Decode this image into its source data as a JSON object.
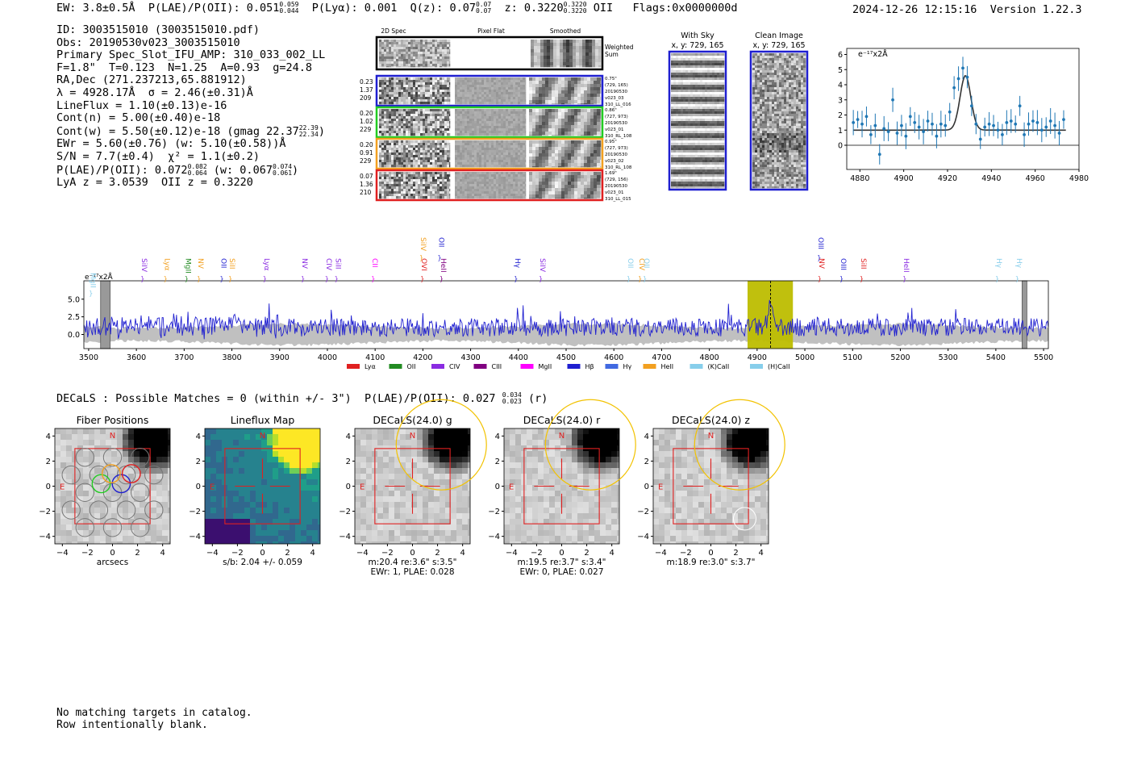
{
  "header": {
    "ew": "EW: 3.8±0.5Å",
    "plae_label": "P(LAE)/P(OII): 0.051",
    "plae_hi": "0.059",
    "plae_lo": "0.044",
    "plya": "P(Lyα): 0.001",
    "q_label": "Q(z): 0.07",
    "q_hi": "0.07",
    "q_lo": "0.07",
    "z_label": "z: 0.3220",
    "z_hi": "0.3220",
    "z_lo": "0.3220",
    "z_line": "OII",
    "flags": "Flags:0x0000000d",
    "timestamp": "2024-12-26 12:15:16",
    "version": "Version 1.22.3"
  },
  "info": {
    "id": "ID: 3003515010 (3003515010.pdf)",
    "obs": "Obs: 20190530v023_3003515010",
    "primary": "Primary Spec_Slot_IFU_AMP: 310_033_002_LL",
    "fparams": "F=1.8\"  T=0.123  N=1.25  A=0.93  g=24.8",
    "radec": "RA,Dec (271.237213,65.881912)",
    "lambda": "λ = 4928.17Å  σ = 2.46(±0.31)Å",
    "lineflux": "LineFlux = 1.10(±0.13)e-16",
    "contn": "Cont(n) = 5.00(±0.40)e-18",
    "contw": "Cont(w) = 5.50(±0.12)e-18 (gmag 22.37",
    "contw_hi": "22.39",
    "contw_lo": "22.34",
    "contw_end": ")",
    "ewr": "EWr = 5.60(±0.76) (w: 5.10(±0.58))Å",
    "sn": "S/N = 7.7(±0.4)  χ² = 1.1(±0.2)",
    "plae": "P(LAE)/P(OII): 0.072",
    "plae_hi": "0.082",
    "plae_lo": "0.064",
    "plae_w": "(w: 0.067",
    "plae_w_hi": "0.074",
    "plae_w_lo": "0.061",
    "plae_w_end": ")",
    "lya": "LyA z = 3.0539  OII z = 0.3220"
  },
  "cutouts": {
    "col_2d": "2D Spec",
    "col_flat": "Pixel Flat",
    "col_smooth": "Smoothed",
    "weighted": "Weighted",
    "sum": "Sum",
    "rows": [
      {
        "color": "#1f1fd0",
        "w1": "0.23",
        "w2": "1.37",
        "w3": "209",
        "r1": "0.75\"",
        "r2": "(729, 165)",
        "r3": "20190530",
        "r4": "v023_03",
        "r5": "310_LL_016"
      },
      {
        "color": "#22cc22",
        "w1": "0.20",
        "w2": "1.02",
        "w3": "229",
        "r1": "0.86\"",
        "r2": "(727, 973)",
        "r3": "20190530",
        "r4": "v023_01",
        "r5": "310_RL_108"
      },
      {
        "color": "#f2a020",
        "w1": "0.20",
        "w2": "0.91",
        "w3": "229",
        "r1": "0.95\"",
        "r2": "(727, 973)",
        "r3": "20190530",
        "r4": "v023_02",
        "r5": "310_RL_108"
      },
      {
        "color": "#e02020",
        "w1": "0.07",
        "w2": "1.36",
        "w3": "210",
        "r1": "1.69\"",
        "r2": "(729, 156)",
        "r3": "20190530",
        "r4": "v023_01",
        "r5": "310_LL_015"
      }
    ],
    "with_sky_title": "With Sky",
    "with_sky_coord": "x, y: 729, 165",
    "clean_title": "Clean Image",
    "clean_coord": "x, y: 729, 165"
  },
  "zoom_chart": {
    "type": "scatter",
    "ylabel": "e⁻¹⁷x2Å",
    "xlim": [
      4874,
      4980
    ],
    "ylim": [
      -1.6,
      6.4
    ],
    "xticks": [
      4880,
      4900,
      4920,
      4940,
      4960,
      4980
    ],
    "yticks": [
      0,
      1,
      2,
      3,
      4,
      5,
      6
    ],
    "points": [
      [
        4877,
        1.5
      ],
      [
        4879,
        1.7
      ],
      [
        4881,
        1.4
      ],
      [
        4883,
        1.9
      ],
      [
        4885,
        0.7
      ],
      [
        4887,
        1.3
      ],
      [
        4889,
        -0.6
      ],
      [
        4891,
        1.1
      ],
      [
        4893,
        0.9
      ],
      [
        4895,
        3.0
      ],
      [
        4897,
        0.8
      ],
      [
        4899,
        1.3
      ],
      [
        4901,
        0.6
      ],
      [
        4903,
        1.9
      ],
      [
        4905,
        1.5
      ],
      [
        4907,
        1.2
      ],
      [
        4909,
        0.9
      ],
      [
        4911,
        1.6
      ],
      [
        4913,
        1.4
      ],
      [
        4915,
        0.6
      ],
      [
        4917,
        1.4
      ],
      [
        4919,
        1.3
      ],
      [
        4921,
        2.2
      ],
      [
        4923,
        3.8
      ],
      [
        4925,
        4.4
      ],
      [
        4927,
        5.1
      ],
      [
        4929,
        4.5
      ],
      [
        4931,
        2.6
      ],
      [
        4933,
        1.4
      ],
      [
        4935,
        0.4
      ],
      [
        4937,
        1.2
      ],
      [
        4939,
        1.4
      ],
      [
        4941,
        1.3
      ],
      [
        4943,
        1.0
      ],
      [
        4945,
        0.7
      ],
      [
        4947,
        1.5
      ],
      [
        4949,
        1.6
      ],
      [
        4951,
        1.4
      ],
      [
        4953,
        2.6
      ],
      [
        4955,
        0.7
      ],
      [
        4957,
        1.4
      ],
      [
        4959,
        1.6
      ],
      [
        4961,
        1.5
      ],
      [
        4963,
        1.0
      ],
      [
        4965,
        1.2
      ],
      [
        4967,
        1.6
      ],
      [
        4969,
        1.3
      ],
      [
        4971,
        0.8
      ],
      [
        4973,
        1.7
      ]
    ],
    "fit": {
      "continuum": 1.0,
      "center": 4928.17,
      "sigma": 2.46,
      "peak": 3.6
    }
  },
  "spectrum": {
    "type": "line",
    "ylabel": "e⁻¹⁷x2Å",
    "xlim": [
      3490,
      5510
    ],
    "ylim": [
      -2.0,
      7.6
    ],
    "xticks": [
      3500,
      3600,
      3700,
      3800,
      3900,
      4000,
      4100,
      4200,
      4300,
      4400,
      4500,
      4600,
      4700,
      4800,
      4900,
      5000,
      5100,
      5200,
      5300,
      5400,
      5500
    ],
    "yticks": [
      0.0,
      2.5,
      5.0
    ],
    "ytick_labels": [
      "0.0",
      "2.5",
      "5.0"
    ],
    "highlight_band": [
      4880,
      4975
    ],
    "emission_line": 4928.17,
    "masked_regions": [
      [
        3525,
        3545
      ],
      [
        5455,
        5465
      ]
    ],
    "line_markers": [
      {
        "label": "MgII",
        "x": 3504,
        "color": "#87ceeb",
        "row": 0
      },
      {
        "label": "SiIV",
        "x": 3612,
        "color": "#8a2be2",
        "row": 1
      },
      {
        "label": "Lyα",
        "x": 3660,
        "color": "#f2a020",
        "row": 1
      },
      {
        "label": "MgII",
        "x": 3704,
        "color": "#228b22",
        "row": 1
      },
      {
        "label": "NV",
        "x": 3730,
        "color": "#f2a020",
        "row": 1
      },
      {
        "label": "OII",
        "x": 3778,
        "color": "#1f1fd0",
        "row": 1
      },
      {
        "label": "SiII",
        "x": 3796,
        "color": "#f2a020",
        "row": 1
      },
      {
        "label": "Lyα",
        "x": 3868,
        "color": "#8a2be2",
        "row": 1
      },
      {
        "label": "NV",
        "x": 3948,
        "color": "#8a2be2",
        "row": 1
      },
      {
        "label": "CIV",
        "x": 3998,
        "color": "#8a2be2",
        "row": 1
      },
      {
        "label": "SiII",
        "x": 4018,
        "color": "#8a2be2",
        "row": 1
      },
      {
        "label": "CII",
        "x": 4095,
        "color": "#ff00ff",
        "row": 1
      },
      {
        "label": "SiIV",
        "x": 4196,
        "color": "#f2a020",
        "row": 2
      },
      {
        "label": "OII",
        "x": 4234,
        "color": "#1f1fd0",
        "row": 2
      },
      {
        "label": "OVI",
        "x": 4198,
        "color": "#e02020",
        "row": 1
      },
      {
        "label": "HeII",
        "x": 4238,
        "color": "#800080",
        "row": 1
      },
      {
        "label": "Hγ",
        "x": 4394,
        "color": "#1f1fd0",
        "row": 1
      },
      {
        "label": "SiIV",
        "x": 4446,
        "color": "#8a2be2",
        "row": 1
      },
      {
        "label": "OII",
        "x": 4630,
        "color": "#87ceeb",
        "row": 1
      },
      {
        "label": "CIV",
        "x": 4654,
        "color": "#f2a020",
        "row": 1
      },
      {
        "label": "OII",
        "x": 4664,
        "color": "#87ceeb",
        "row": 1
      },
      {
        "label": "OIII",
        "x": 5029,
        "color": "#1f1fd0",
        "row": 2
      },
      {
        "label": "NV",
        "x": 5030,
        "color": "#e02020",
        "row": 1
      },
      {
        "label": "OIII",
        "x": 5076,
        "color": "#1f1fd0",
        "row": 1
      },
      {
        "label": "SiII",
        "x": 5118,
        "color": "#e02020",
        "row": 1
      },
      {
        "label": "HeII",
        "x": 5208,
        "color": "#8a2be2",
        "row": 1
      },
      {
        "label": "Hγ",
        "x": 5402,
        "color": "#87ceeb",
        "row": 1
      },
      {
        "label": "Hγ",
        "x": 5444,
        "color": "#87ceeb",
        "row": 1
      }
    ],
    "legend": [
      {
        "label": "Lyα",
        "color": "#e02020"
      },
      {
        "label": "OII",
        "color": "#228b22"
      },
      {
        "label": "CIV",
        "color": "#8a2be2"
      },
      {
        "label": "CIII",
        "color": "#800080"
      },
      {
        "label": "MgII",
        "color": "#ff00ff"
      },
      {
        "label": "Hβ",
        "color": "#1f1fd0"
      },
      {
        "label": "Hγ",
        "color": "#4169e1"
      },
      {
        "label": "HeII",
        "color": "#f2a020"
      },
      {
        "label": "(K)CaII",
        "color": "#87ceeb"
      },
      {
        "label": "(H)CaII",
        "color": "#87ceeb"
      }
    ]
  },
  "decals": {
    "summary": "DECaLS : Possible Matches = 0 (within +/- 3\")  P(LAE)/P(OII): 0.027",
    "summary_hi": "0.034",
    "summary_lo": "0.023",
    "summary_end": "(r)",
    "north": "N",
    "east": "E",
    "xticks": [
      -4,
      -2,
      0,
      2,
      4
    ],
    "yticks": [
      4,
      2,
      0,
      -2,
      -4
    ],
    "panels": [
      {
        "title": "Fiber Positions",
        "caption1": "arcsecs",
        "caption2": ""
      },
      {
        "title": "Lineflux Map",
        "caption1": "s/b: 2.04 +/- 0.059",
        "caption2": ""
      },
      {
        "title": "DECaLS(24.0) g",
        "caption1": "m:20.4  re:3.6\"  s:3.5\"",
        "caption2": "EWr: 1, PLAE: 0.028"
      },
      {
        "title": "DECaLS(24.0) r",
        "caption1": "m:19.5  re:3.7\"  s:3.4\"",
        "caption2": "EWr: 0, PLAE: 0.027"
      },
      {
        "title": "DECaLS(24.0) z",
        "caption1": "m:18.9  re:3.0\"  s:3.7\"",
        "caption2": ""
      }
    ]
  },
  "catalog": {
    "line1": "No matching targets in catalog.",
    "line2": "Row intentionally blank."
  }
}
